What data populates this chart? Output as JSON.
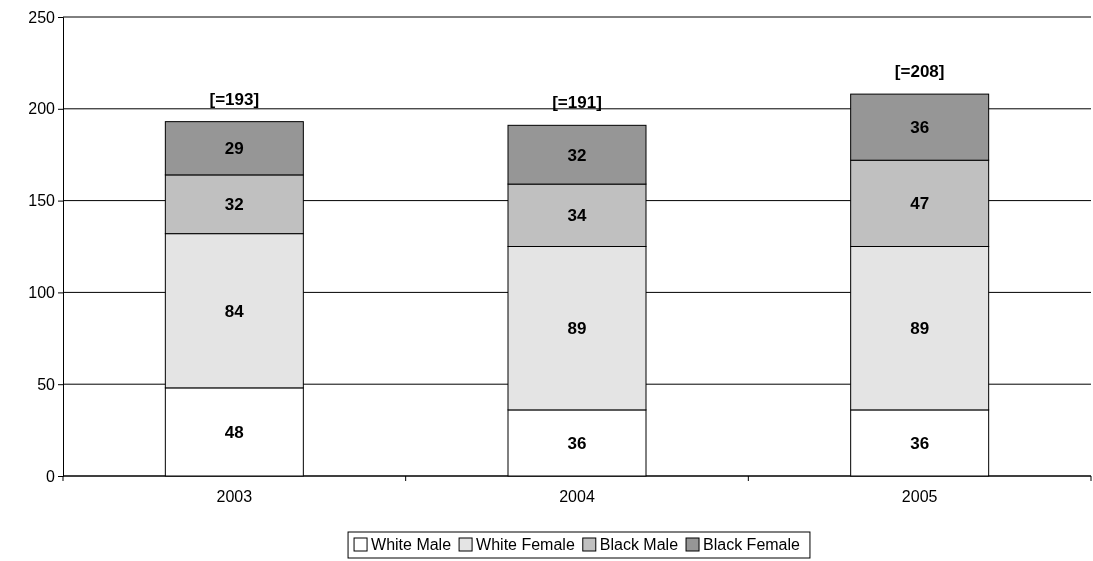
{
  "chart_data": {
    "type": "bar",
    "stacked": true,
    "categories": [
      "2003",
      "2004",
      "2005"
    ],
    "series": [
      {
        "name": "White Male",
        "color": "#ffffff",
        "values": [
          48,
          36,
          36
        ]
      },
      {
        "name": "White Female",
        "color": "#e4e4e4",
        "values": [
          84,
          89,
          89
        ]
      },
      {
        "name": "Black Male",
        "color": "#c0c0c0",
        "values": [
          32,
          34,
          47
        ]
      },
      {
        "name": "Black Female",
        "color": "#969696",
        "values": [
          29,
          32,
          36
        ]
      }
    ],
    "ylim": [
      0,
      250
    ],
    "yticks": [
      0,
      50,
      100,
      150,
      200,
      250
    ],
    "grid": "y",
    "legend": "bottom",
    "data_labels": true,
    "totals": [
      "[=193]",
      "[=191]",
      "[=208]"
    ]
  }
}
